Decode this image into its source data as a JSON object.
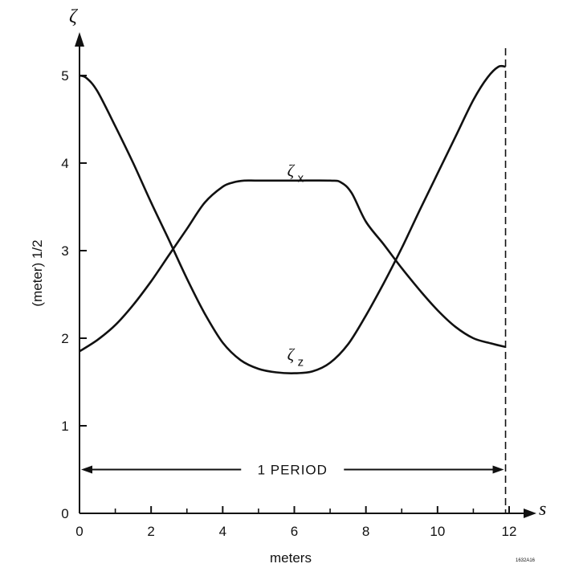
{
  "chart_data": {
    "type": "line",
    "ylabel": "(meter) 1/2",
    "y_axis_symbol": "ζ",
    "xlabel": "meters",
    "x_axis_symbol": "s",
    "xlim": [
      0,
      12.7
    ],
    "ylim": [
      0,
      5.6
    ],
    "x_ticks": [
      0,
      2,
      4,
      6,
      8,
      10,
      12
    ],
    "x_minor_ticks": [
      1,
      3,
      5,
      7,
      9,
      11
    ],
    "y_ticks": [
      0,
      1,
      2,
      3,
      4,
      5
    ],
    "grid": false,
    "series": [
      {
        "name": "ζx",
        "label_main": "ζ",
        "label_sub": "x",
        "label_pos": [
          5.8,
          3.85
        ],
        "x": [
          0,
          0.5,
          1,
          1.5,
          2,
          2.5,
          3,
          3.5,
          4,
          4.3,
          4.6,
          5,
          6,
          7,
          7.3,
          7.6,
          8,
          8.5,
          9,
          9.5,
          10,
          10.5,
          11,
          11.5,
          11.9
        ],
        "y": [
          1.85,
          1.98,
          2.15,
          2.38,
          2.65,
          2.95,
          3.25,
          3.55,
          3.73,
          3.78,
          3.8,
          3.8,
          3.8,
          3.8,
          3.78,
          3.66,
          3.33,
          3.07,
          2.8,
          2.55,
          2.32,
          2.13,
          2.0,
          1.94,
          1.9
        ]
      },
      {
        "name": "ζz",
        "label_main": "ζ",
        "label_sub": "z",
        "label_pos": [
          5.8,
          1.75
        ],
        "x": [
          0,
          0.2,
          0.5,
          1,
          1.5,
          2,
          2.5,
          3,
          3.5,
          4,
          4.5,
          5,
          5.5,
          6,
          6.5,
          7,
          7.5,
          8,
          8.5,
          9,
          9.5,
          10,
          10.5,
          11,
          11.4,
          11.7,
          11.9
        ],
        "y": [
          5.0,
          4.97,
          4.82,
          4.42,
          4.0,
          3.55,
          3.12,
          2.68,
          2.28,
          1.95,
          1.75,
          1.65,
          1.61,
          1.6,
          1.62,
          1.72,
          1.93,
          2.26,
          2.63,
          3.03,
          3.46,
          3.88,
          4.3,
          4.72,
          4.98,
          5.1,
          5.1
        ]
      }
    ],
    "period": {
      "label": "1 PERIOD",
      "y": 0.5,
      "x_start": 0,
      "x_end": 11.9
    },
    "dashed_marker_x": 11.9,
    "figure_id": "1632A16"
  }
}
